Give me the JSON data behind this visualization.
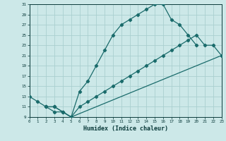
{
  "xlabel": "Humidex (Indice chaleur)",
  "bg_color": "#cce8e8",
  "grid_color": "#aacfcf",
  "line_color": "#1a6b6b",
  "xlim": [
    0,
    23
  ],
  "ylim": [
    9,
    31
  ],
  "xticks": [
    0,
    1,
    2,
    3,
    4,
    5,
    6,
    7,
    8,
    9,
    10,
    11,
    12,
    13,
    14,
    15,
    16,
    17,
    18,
    19,
    20,
    21,
    22,
    23
  ],
  "yticks": [
    9,
    11,
    13,
    15,
    17,
    19,
    21,
    23,
    25,
    27,
    29,
    31
  ],
  "curve1_x": [
    0,
    1,
    2,
    3,
    4,
    5,
    6,
    7,
    8,
    9,
    10,
    11,
    12,
    13,
    14,
    15,
    16,
    17,
    18,
    19,
    20
  ],
  "curve1_y": [
    13,
    12,
    11,
    10,
    10,
    9,
    14,
    16,
    19,
    22,
    25,
    27,
    28,
    29,
    30,
    31,
    31,
    28,
    27,
    25,
    23
  ],
  "curve2_x": [
    2,
    3,
    4,
    5,
    6,
    7,
    8,
    9,
    10,
    11,
    12,
    13,
    14,
    15,
    16,
    17,
    18,
    19,
    20,
    21,
    22,
    23
  ],
  "curve2_y": [
    11,
    11,
    10,
    9,
    11,
    12,
    13,
    14,
    15,
    16,
    17,
    18,
    19,
    20,
    21,
    22,
    23,
    24,
    25,
    23,
    23,
    21
  ],
  "curve3_x": [
    2,
    3,
    4,
    5,
    23
  ],
  "curve3_y": [
    11,
    11,
    10,
    9,
    21
  ]
}
